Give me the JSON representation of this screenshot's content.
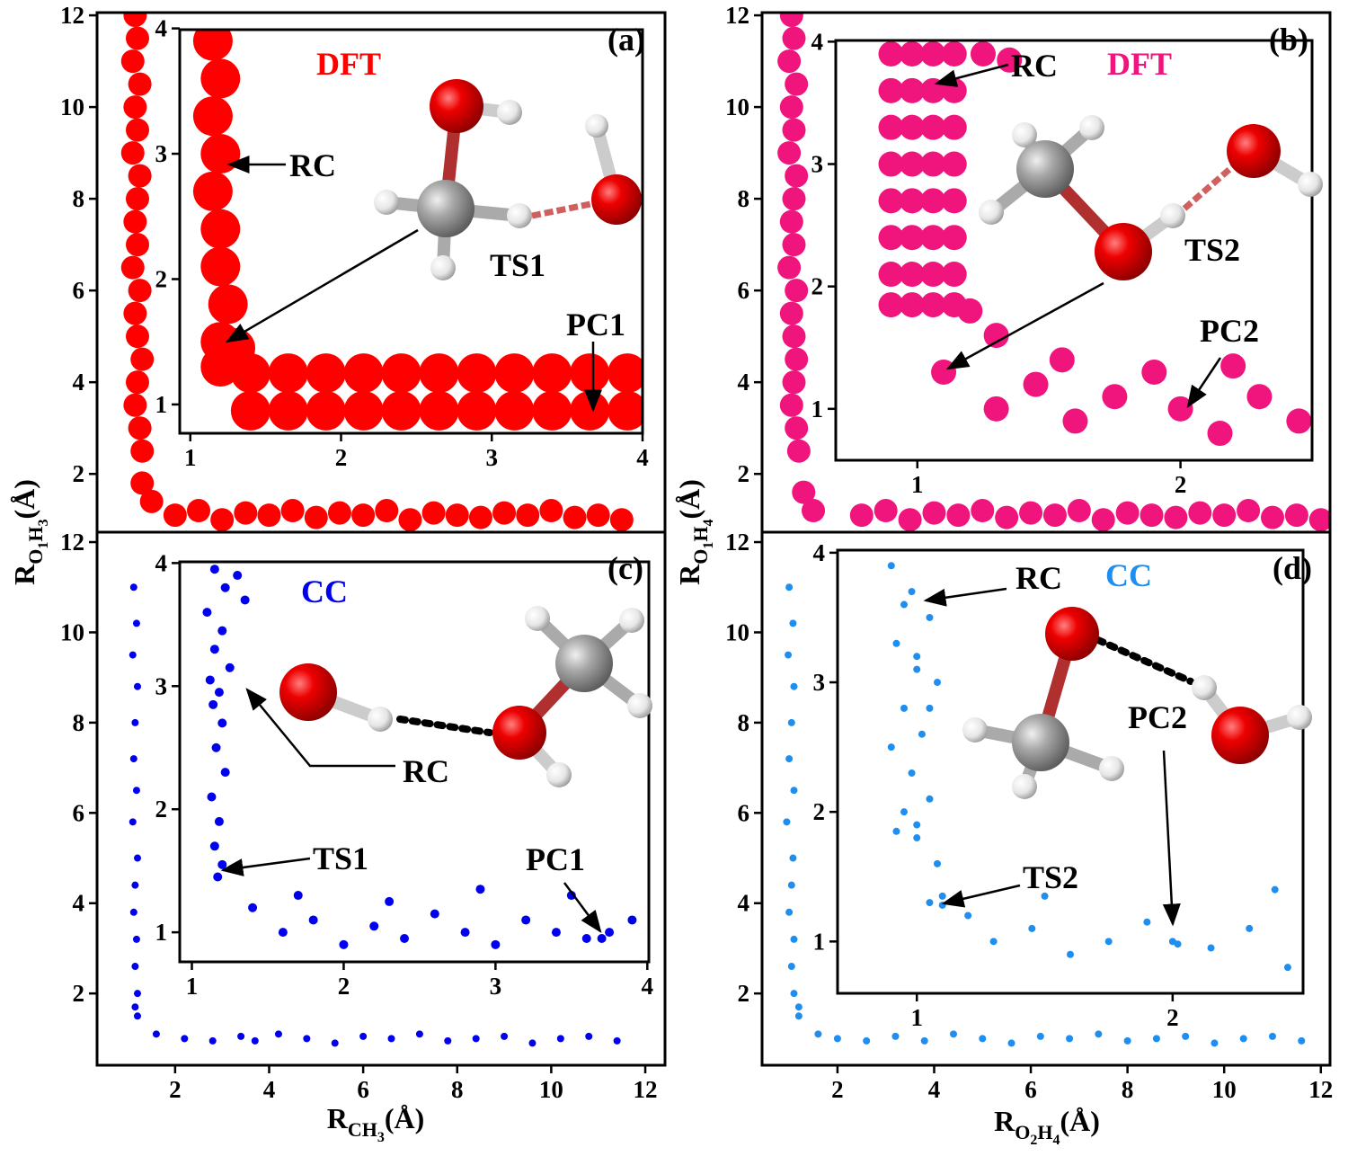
{
  "chart_data": [
    {
      "type": "scatter",
      "color": "#ff0000",
      "ylabel": [
        {
          "text": "R",
          "level": 0
        },
        {
          "text": "O",
          "level": 1
        },
        {
          "text": "1",
          "level": 2
        },
        {
          "text": "H",
          "level": 1
        },
        {
          "text": "3",
          "level": 2
        },
        {
          "text": "(Å)",
          "level": 0
        }
      ],
      "annotations": [
        "(a)",
        "DFT",
        "RC",
        "TS1",
        "PC1"
      ],
      "xlim": [
        0.34,
        12.42
      ],
      "ylim": [
        0.73,
        12.06
      ],
      "yticks": [
        2,
        4,
        6,
        8,
        10,
        12
      ],
      "x": [
        1.15,
        1.2,
        1.1,
        1.25,
        1.15,
        1.2,
        1.1,
        1.25,
        1.2,
        1.15,
        1.2,
        1.1,
        1.25,
        1.15,
        1.2,
        1.3,
        1.2,
        1.15,
        1.25,
        1.3,
        1.3,
        1.5,
        2,
        2.5,
        3,
        3.5,
        4,
        4.5,
        5,
        5.5,
        6,
        6.5,
        7,
        7.5,
        8,
        8.5,
        9,
        9.5,
        10,
        10.5,
        11,
        11.5
      ],
      "y": [
        12,
        11.5,
        11,
        10.5,
        10,
        9.5,
        9,
        8.5,
        8,
        7.5,
        7,
        6.5,
        6,
        5.5,
        5,
        4.5,
        4,
        3.5,
        3,
        2.5,
        1.8,
        1.4,
        1.1,
        1.2,
        1.0,
        1.15,
        1.1,
        1.2,
        1.05,
        1.15,
        1.1,
        1.2,
        1.0,
        1.15,
        1.1,
        1.05,
        1.15,
        1.1,
        1.2,
        1.05,
        1.1,
        1.0
      ]
    },
    {
      "type": "scatter",
      "color": "#ff0000",
      "xlim": [
        0.93,
        4.0
      ],
      "ylim": [
        0.77,
        3.99
      ],
      "xticks": [
        1,
        2,
        3,
        4
      ],
      "yticks": [
        1,
        2,
        3,
        4
      ],
      "x": [
        1.15,
        1.2,
        1.15,
        1.2,
        1.15,
        1.2,
        1.2,
        1.25,
        1.2,
        1.3,
        1.2,
        1.4,
        1.65,
        1.9,
        2.15,
        2.4,
        2.65,
        2.9,
        3.15,
        3.4,
        3.65,
        3.9,
        1.4,
        1.65,
        1.9,
        2.15,
        2.4,
        2.65,
        2.9,
        3.15,
        3.4,
        3.65,
        3.9
      ],
      "y": [
        3.9,
        3.6,
        3.3,
        3.0,
        2.7,
        2.4,
        2.1,
        1.8,
        1.5,
        1.45,
        1.3,
        1.25,
        1.25,
        1.25,
        1.25,
        1.25,
        1.25,
        1.25,
        1.25,
        1.25,
        1.25,
        1.25,
        0.95,
        0.95,
        0.95,
        0.95,
        0.95,
        0.95,
        0.95,
        0.95,
        0.95,
        0.95,
        0.95
      ]
    },
    {
      "type": "scatter",
      "color": "#f0147d",
      "ylabel": [
        {
          "text": "R",
          "level": 0
        },
        {
          "text": "O",
          "level": 1
        },
        {
          "text": "1",
          "level": 2
        },
        {
          "text": "H",
          "level": 1
        },
        {
          "text": "4",
          "level": 2
        },
        {
          "text": "(Å)",
          "level": 0
        }
      ],
      "annotations": [
        "(b)",
        "DFT",
        "RC",
        "TS2",
        "PC2"
      ],
      "xlim": [
        0.44,
        12.19
      ],
      "ylim": [
        0.73,
        12.06
      ],
      "yticks": [
        2,
        4,
        6,
        8,
        10,
        12
      ],
      "x": [
        1.05,
        1.1,
        1.0,
        1.15,
        1.05,
        1.1,
        1.0,
        1.15,
        1.1,
        1.05,
        1.1,
        1.0,
        1.15,
        1.05,
        1.1,
        1.15,
        1.1,
        1.05,
        1.15,
        1.2,
        1.3,
        1.5,
        2.5,
        3,
        3.5,
        4,
        4.5,
        5,
        5.5,
        6,
        6.5,
        7,
        7.5,
        8,
        8.5,
        9,
        9.5,
        10,
        10.5,
        11,
        11.5,
        12
      ],
      "y": [
        12,
        11.5,
        11,
        10.5,
        10,
        9.5,
        9,
        8.5,
        8,
        7.5,
        7,
        6.5,
        6,
        5.5,
        5,
        4.5,
        4,
        3.5,
        3,
        2.5,
        1.6,
        1.2,
        1.1,
        1.2,
        1.0,
        1.15,
        1.1,
        1.2,
        1.05,
        1.15,
        1.1,
        1.2,
        1.0,
        1.15,
        1.1,
        1.05,
        1.15,
        1.1,
        1.2,
        1.05,
        1.1,
        1.0
      ]
    },
    {
      "type": "scatter",
      "color": "#f0147d",
      "xlim": [
        0.69,
        2.5
      ],
      "ylim": [
        0.58,
        4.01
      ],
      "xticks": [
        1,
        2
      ],
      "yticks": [
        1,
        2,
        3,
        4
      ],
      "x": [
        0.9,
        0.98,
        1.06,
        1.14,
        0.9,
        0.98,
        1.06,
        1.14,
        0.9,
        0.98,
        1.06,
        1.14,
        0.9,
        0.98,
        1.06,
        1.14,
        0.9,
        0.98,
        1.06,
        1.14,
        0.9,
        0.98,
        1.06,
        1.14,
        0.9,
        0.98,
        1.06,
        1.14,
        0.9,
        0.98,
        1.06,
        1.14,
        1.25,
        1.35,
        1.2,
        1.3,
        1.1,
        1.3,
        1.45,
        1.6,
        1.75,
        1.9,
        2.0,
        2.15,
        2.3,
        2.45,
        1.55,
        2.2
      ],
      "y": [
        3.9,
        3.9,
        3.9,
        3.9,
        3.6,
        3.6,
        3.6,
        3.6,
        3.3,
        3.3,
        3.3,
        3.3,
        3.0,
        3.0,
        3.0,
        3.0,
        2.7,
        2.7,
        2.7,
        2.7,
        2.4,
        2.4,
        2.4,
        2.4,
        2.1,
        2.1,
        2.1,
        2.1,
        1.85,
        1.85,
        1.85,
        1.85,
        3.9,
        3.85,
        1.8,
        1.6,
        1.3,
        1.0,
        1.2,
        0.9,
        1.1,
        1.3,
        1.0,
        0.8,
        1.1,
        0.9,
        1.4,
        1.35
      ]
    },
    {
      "type": "scatter",
      "color": "#0000ee",
      "xlabel": [
        {
          "text": "R",
          "level": 0
        },
        {
          "text": "CH",
          "level": 1
        },
        {
          "text": "3",
          "level": 2
        },
        {
          "text": "(Å)",
          "level": 0
        }
      ],
      "annotations": [
        "(c)",
        "CC",
        "RC",
        "TS1",
        "PC1"
      ],
      "xlim": [
        0.34,
        12.42
      ],
      "ylim": [
        0.41,
        12.22
      ],
      "xticks": [
        2,
        4,
        6,
        8,
        10,
        12
      ],
      "yticks": [
        2,
        4,
        6,
        8,
        10,
        12
      ],
      "x": [
        1.12,
        1.18,
        1.1,
        1.2,
        1.15,
        1.12,
        1.18,
        1.1,
        1.2,
        1.15,
        1.12,
        1.18,
        1.15,
        1.2,
        1.15,
        1.2,
        1.6,
        2.2,
        2.8,
        3.4,
        3.7,
        4.2,
        4.8,
        5.4,
        6,
        6.6,
        7.2,
        7.8,
        8.4,
        9,
        9.6,
        10.2,
        10.8,
        11.4
      ],
      "y": [
        11,
        10.2,
        9.5,
        8.8,
        8,
        7.2,
        6.5,
        5.8,
        5,
        4.4,
        3.8,
        3.2,
        2.6,
        2,
        1.7,
        1.5,
        1.1,
        1.0,
        0.95,
        1.05,
        0.95,
        1.1,
        1.0,
        0.9,
        1.05,
        1.0,
        1.1,
        0.95,
        1.0,
        1.05,
        0.9,
        1.0,
        1.05,
        0.95
      ]
    },
    {
      "type": "scatter",
      "color": "#0000ee",
      "xlim": [
        0.92,
        4.01
      ],
      "ylim": [
        0.76,
        4.01
      ],
      "xticks": [
        1,
        2,
        3,
        4
      ],
      "yticks": [
        1,
        2,
        3,
        4
      ],
      "x": [
        1.15,
        1.22,
        1.1,
        1.2,
        1.15,
        1.25,
        1.12,
        1.18,
        1.14,
        1.2,
        1.16,
        1.22,
        1.13,
        1.18,
        1.15,
        1.2,
        1.17,
        1.3,
        1.35,
        1.4,
        1.6,
        1.8,
        2.0,
        2.2,
        2.4,
        2.6,
        2.8,
        3.0,
        3.2,
        3.4,
        3.6,
        3.7,
        3.75,
        3.9,
        1.7,
        2.3,
        2.9,
        3.5
      ],
      "y": [
        3.95,
        3.8,
        3.6,
        3.45,
        3.3,
        3.15,
        3.05,
        2.95,
        2.85,
        2.7,
        2.5,
        2.3,
        2.1,
        1.9,
        1.7,
        1.55,
        1.45,
        3.9,
        3.7,
        1.2,
        1.0,
        1.1,
        0.9,
        1.05,
        0.95,
        1.15,
        1.0,
        0.9,
        1.1,
        1.0,
        0.95,
        0.95,
        1.0,
        1.1,
        1.3,
        1.25,
        1.35,
        1.3
      ]
    },
    {
      "type": "scatter",
      "color": "#1e8ff0",
      "xlabel": [
        {
          "text": "R",
          "level": 0
        },
        {
          "text": "O",
          "level": 1
        },
        {
          "text": "2",
          "level": 2
        },
        {
          "text": "H",
          "level": 1
        },
        {
          "text": "4",
          "level": 2
        },
        {
          "text": "(Å)",
          "level": 0
        }
      ],
      "annotations": [
        "(d)",
        "CC",
        "RC",
        "TS2",
        "PC2"
      ],
      "xlim": [
        0.44,
        12.19
      ],
      "ylim": [
        0.41,
        12.22
      ],
      "xticks": [
        2,
        4,
        6,
        8,
        10,
        12
      ],
      "yticks": [
        2,
        4,
        6,
        8,
        10,
        12
      ],
      "x": [
        1.0,
        1.08,
        0.98,
        1.1,
        1.05,
        1.0,
        1.1,
        0.95,
        1.08,
        1.05,
        1.0,
        1.1,
        1.05,
        1.1,
        1.2,
        1.2,
        1.6,
        2.0,
        2.6,
        3.2,
        3.8,
        4.4,
        5,
        5.6,
        6.2,
        6.8,
        7.4,
        8,
        8.6,
        9.2,
        9.8,
        10.4,
        11,
        11.6
      ],
      "y": [
        11,
        10.2,
        9.5,
        8.8,
        8,
        7.2,
        6.5,
        5.8,
        5,
        4.4,
        3.8,
        3.2,
        2.6,
        2,
        1.7,
        1.5,
        1.1,
        1.0,
        0.95,
        1.05,
        0.95,
        1.1,
        1.0,
        0.9,
        1.05,
        1.0,
        1.1,
        0.95,
        1.0,
        1.05,
        0.9,
        1.0,
        1.05,
        0.95
      ]
    },
    {
      "type": "scatter",
      "color": "#1e8ff0",
      "xlim": [
        0.69,
        2.51
      ],
      "ylim": [
        0.6,
        4.02
      ],
      "xticks": [
        1,
        2
      ],
      "yticks": [
        1,
        2,
        3,
        4
      ],
      "x": [
        0.9,
        0.98,
        1.05,
        0.92,
        1.0,
        1.08,
        0.95,
        1.02,
        0.9,
        0.98,
        1.05,
        0.95,
        1.0,
        0.92,
        1.0,
        1.08,
        0.95,
        1.0,
        1.05,
        1.1,
        1.05,
        1.1,
        1.2,
        1.3,
        1.45,
        1.6,
        1.75,
        1.9,
        2.0,
        2.02,
        2.15,
        2.3,
        2.45,
        1.5,
        2.4
      ],
      "y": [
        3.9,
        3.7,
        3.5,
        3.3,
        3.1,
        3.0,
        2.8,
        2.6,
        2.5,
        2.3,
        2.1,
        2.0,
        1.9,
        1.85,
        1.8,
        1.6,
        3.6,
        3.2,
        2.8,
        1.35,
        1.3,
        1.28,
        1.2,
        1.0,
        1.1,
        0.9,
        1.0,
        1.15,
        1.0,
        0.98,
        0.95,
        1.1,
        0.8,
        1.35,
        1.4
      ]
    }
  ]
}
